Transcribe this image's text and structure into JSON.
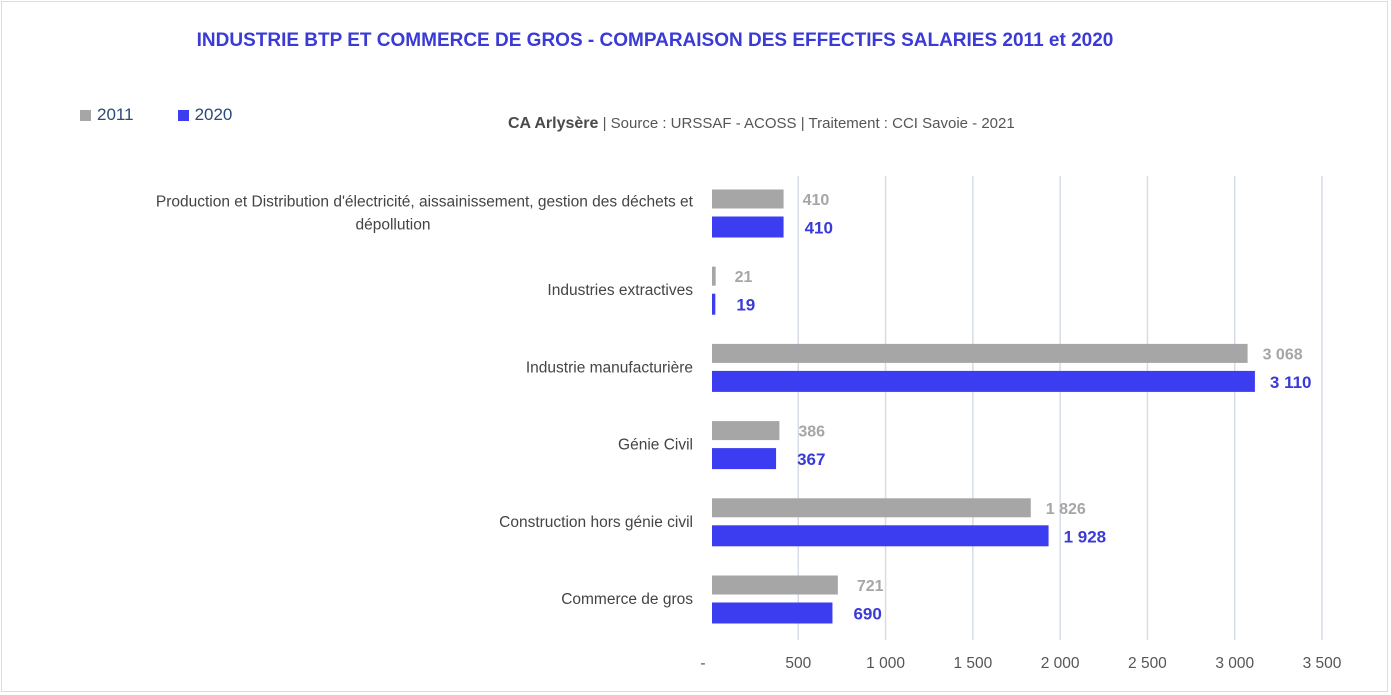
{
  "title": "INDUSTRIE BTP ET COMMERCE DE GROS - COMPARAISON DES EFFECTIFS SALARIES 2011 et 2020",
  "subtitle": {
    "area": "CA Arlysère",
    "source": "|  Source : URSSAF - ACOSS  |  Traitement : CCI Savoie - 2021"
  },
  "colors": {
    "s2011": "#a6a6a6",
    "s2020": "#3c3cf0",
    "grid": "#d6dce8",
    "title": "#3a3ad6"
  },
  "chart_data": {
    "type": "bar",
    "orientation": "horizontal",
    "categories": [
      [
        "Production et Distribution d'électricité, aissainissement, gestion des déchets et",
        "dépollution"
      ],
      [
        "Industries extractives"
      ],
      [
        "Industrie manufacturière"
      ],
      [
        "Génie Civil"
      ],
      [
        "Construction hors génie civil"
      ],
      [
        "Commerce de gros"
      ]
    ],
    "series": [
      {
        "name": "2011",
        "values": [
          410,
          21,
          3068,
          386,
          1826,
          721
        ],
        "labels": [
          "410",
          "21",
          "3 068",
          "386",
          "1 826",
          "721"
        ]
      },
      {
        "name": "2020",
        "values": [
          410,
          19,
          3110,
          367,
          1928,
          690
        ],
        "labels": [
          "410",
          "19",
          "3 110",
          "367",
          "1 928",
          "690"
        ]
      }
    ],
    "xlim": [
      0,
      3500
    ],
    "xticks": [
      0,
      500,
      1000,
      1500,
      2000,
      2500,
      3000,
      3500
    ],
    "xtick_labels": [
      "-",
      "500",
      "1 000",
      "1 500",
      "2 000",
      "2 500",
      "3 000",
      "3 500"
    ],
    "legend_position": "top-left",
    "grid": "vertical"
  }
}
